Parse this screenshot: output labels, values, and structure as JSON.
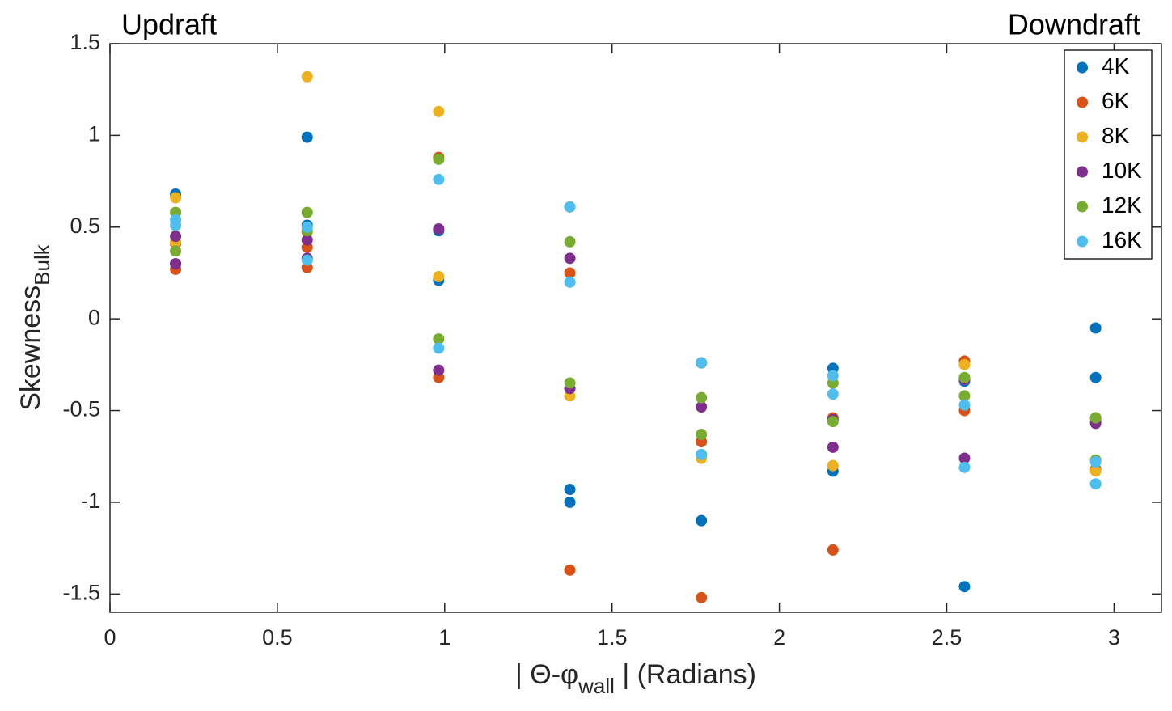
{
  "chart_data": {
    "type": "scatter",
    "annotations": [
      "Updraft",
      "Downdraft"
    ],
    "x_label": {
      "text": "| Θ-φ",
      "sub": "wall",
      "rest": " | (Radians)"
    },
    "y_label": {
      "text": "Skewness",
      "sub": "Bulk"
    },
    "x": [
      0.196,
      0.196,
      0.589,
      0.589,
      0.982,
      0.982,
      1.374,
      1.374,
      1.767,
      1.767,
      2.16,
      2.16,
      2.553,
      2.553,
      2.945,
      2.945
    ],
    "series": [
      {
        "name": "4K",
        "color": "#0072bd",
        "values": [
          0.68,
          0.3,
          0.99,
          0.51,
          0.48,
          0.21,
          -0.93,
          -1.0,
          -0.74,
          -1.1,
          -0.27,
          -0.83,
          -0.34,
          -1.46,
          -0.05,
          -0.32
        ]
      },
      {
        "name": "6K",
        "color": "#d95319",
        "values": [
          0.41,
          0.27,
          0.39,
          0.28,
          0.88,
          -0.32,
          0.25,
          -1.37,
          -0.67,
          -1.52,
          -0.54,
          -1.26,
          -0.23,
          -0.5,
          -0.56,
          -0.82
        ]
      },
      {
        "name": "8K",
        "color": "#edb120",
        "values": [
          0.66,
          0.42,
          1.32,
          0.47,
          1.13,
          0.23,
          0.61,
          -0.42,
          -0.24,
          -0.76,
          -0.35,
          -0.8,
          -0.25,
          -0.33,
          -0.54,
          -0.83
        ]
      },
      {
        "name": "10K",
        "color": "#7e2f8e",
        "values": [
          0.45,
          0.3,
          0.43,
          0.33,
          0.49,
          -0.28,
          0.33,
          -0.38,
          -0.24,
          -0.48,
          -0.55,
          -0.7,
          -0.33,
          -0.76,
          -0.54,
          -0.57
        ]
      },
      {
        "name": "12K",
        "color": "#77ac30",
        "values": [
          0.58,
          0.37,
          0.58,
          0.48,
          0.87,
          -0.11,
          0.42,
          -0.35,
          -0.43,
          -0.63,
          -0.35,
          -0.56,
          -0.32,
          -0.42,
          -0.54,
          -0.77
        ]
      },
      {
        "name": "16K",
        "color": "#4dbeee",
        "values": [
          0.54,
          0.51,
          0.5,
          0.32,
          0.76,
          -0.16,
          0.61,
          0.2,
          -0.24,
          -0.74,
          -0.31,
          -0.41,
          -0.47,
          -0.81,
          -0.78,
          -0.9
        ]
      }
    ],
    "xlim": [
      0,
      3.1416
    ],
    "ylim": [
      -1.6,
      1.5
    ],
    "xticks": [
      0,
      0.5,
      1,
      1.5,
      2,
      2.5,
      3
    ],
    "yticks": [
      -1.5,
      -1,
      -0.5,
      0,
      0.5,
      1,
      1.5
    ],
    "legend": "upper right"
  }
}
